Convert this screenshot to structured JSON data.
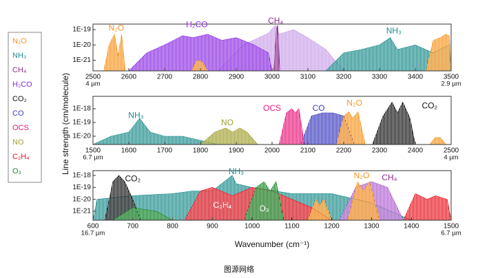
{
  "figure": {
    "y_label": "Line strength (cm/molecule)",
    "x_label": "Wavenumber (cm⁻¹)",
    "caption": "图源网络",
    "legend": [
      {
        "text": "N₂O",
        "color": "#f7941d"
      },
      {
        "text": "NH₃",
        "color": "#1a8a8a"
      },
      {
        "text": "CH₄",
        "color": "#8b2b8b"
      },
      {
        "text": "H₂CO",
        "color": "#8a2be2"
      },
      {
        "text": "CO₂",
        "color": "#111111"
      },
      {
        "text": "CO",
        "color": "#3b3bbf"
      },
      {
        "text": "OCS",
        "color": "#e8177a"
      },
      {
        "text": "NO",
        "color": "#a0a030"
      },
      {
        "text": "C₂H₄",
        "color": "#e8141e"
      },
      {
        "text": "O₃",
        "color": "#1a8a2a"
      }
    ]
  },
  "chart_data": [
    {
      "type": "area",
      "log_y": true,
      "xlim": [
        2500,
        3500
      ],
      "ylim": [
        2e-22,
        2.3e-19
      ],
      "xticks": [
        2500,
        2600,
        2700,
        2800,
        2900,
        3000,
        3100,
        3200,
        3300,
        3400,
        3500
      ],
      "yticks": [
        {
          "value": 1e-19,
          "label": "1E-19"
        },
        {
          "value": 1e-20,
          "label": "1E-20"
        },
        {
          "value": 1e-21,
          "label": "1E-21"
        }
      ],
      "wavelength_labels": [
        {
          "x": 2500,
          "text": "4 µm"
        },
        {
          "x": 3500,
          "text": "2.9 µm"
        }
      ],
      "series": [
        {
          "color": "#c9a0e8",
          "x": [
            2850,
            2920,
            2990,
            3010,
            3020,
            3060,
            3100,
            3150,
            3200
          ],
          "values": [
            2e-22,
            1e-20,
            6e-20,
            2e-19,
            5e-20,
            1e-19,
            3e-20,
            5e-21,
            2e-22
          ]
        },
        {
          "color": "#8a2be2",
          "x": [
            2600,
            2650,
            2700,
            2750,
            2780,
            2820,
            2860,
            2900,
            2950,
            2990,
            3000
          ],
          "values": [
            2e-22,
            3e-21,
            1e-20,
            4e-20,
            3e-20,
            5e-20,
            2e-20,
            3e-20,
            1e-20,
            3e-21,
            2e-22
          ]
        },
        {
          "color": "#8b2b8b",
          "x": [
            3005,
            3012,
            3016,
            3022
          ],
          "values": [
            2e-22,
            1e-19,
            2e-19,
            2e-22
          ]
        },
        {
          "color": "#f7941d",
          "x": [
            2530,
            2545,
            2560,
            2570,
            2580,
            2590
          ],
          "values": [
            2e-22,
            1e-20,
            5e-20,
            2e-21,
            5e-20,
            2e-22
          ]
        },
        {
          "color": "#f7941d",
          "x": [
            2775,
            2790,
            2805,
            2820
          ],
          "values": [
            2e-22,
            1e-21,
            8e-22,
            2e-22
          ]
        },
        {
          "color": "#1a8a8a",
          "x": [
            3150,
            3200,
            3250,
            3300,
            3330,
            3350,
            3400,
            3450,
            3495,
            3500
          ],
          "values": [
            2e-22,
            3e-21,
            5e-21,
            1e-20,
            3e-20,
            5e-21,
            1e-20,
            3e-21,
            1e-20,
            2e-22
          ]
        },
        {
          "color": "#f7941d",
          "x": [
            3430,
            3450,
            3470,
            3485,
            3495,
            3500
          ],
          "values": [
            2e-22,
            2e-20,
            3e-20,
            5e-20,
            4e-20,
            2e-22
          ]
        }
      ],
      "annotations": [
        {
          "text": "N₂O",
          "x": 2565,
          "y": 1.2e-19,
          "color": "#f7941d"
        },
        {
          "text": "H₂CO",
          "x": 2790,
          "y": 2e-19,
          "color": "#8a2be2"
        },
        {
          "text": "CH₄",
          "x": 3010,
          "y": 3.5e-19,
          "color": "#8b2b8b"
        },
        {
          "text": "NH₃",
          "x": 3340,
          "y": 8e-20,
          "color": "#1a8a8a"
        }
      ]
    },
    {
      "type": "area",
      "log_y": true,
      "xlim": [
        1500,
        2500
      ],
      "ylim": [
        2.5e-21,
        8e-18
      ],
      "xticks": [
        1500,
        1600,
        1700,
        1800,
        1900,
        2000,
        2100,
        2200,
        2300,
        2400,
        2500
      ],
      "yticks": [
        {
          "value": 1e-18,
          "label": "1E-18"
        },
        {
          "value": 1e-19,
          "label": "1E-19"
        },
        {
          "value": 1e-20,
          "label": "1E-20"
        }
      ],
      "wavelength_labels": [
        {
          "x": 1500,
          "text": "6.7 µm"
        },
        {
          "x": 2500,
          "text": "4 µm"
        }
      ],
      "series": [
        {
          "color": "#1a8a8a",
          "x": [
            1500,
            1550,
            1600,
            1630,
            1660,
            1700,
            1750,
            1800,
            1850
          ],
          "values": [
            2.5e-21,
            1e-20,
            2e-20,
            2e-19,
            2e-20,
            1e-20,
            1e-20,
            5e-21,
            2.5e-21
          ]
        },
        {
          "color": "#a0a030",
          "x": [
            1800,
            1840,
            1870,
            1890,
            1910,
            1930,
            1960
          ],
          "values": [
            2.5e-21,
            2e-20,
            4e-20,
            2e-20,
            4e-20,
            2e-20,
            2.5e-21
          ]
        },
        {
          "color": "#3b3bbf",
          "x": [
            2080,
            2110,
            2140,
            2170,
            2200,
            2230
          ],
          "values": [
            2.5e-21,
            3e-19,
            5e-19,
            5e-19,
            3e-19,
            2.5e-21
          ]
        },
        {
          "color": "#e8177a",
          "x": [
            2020,
            2040,
            2055,
            2065,
            2075,
            2090
          ],
          "values": [
            2.5e-21,
            5e-19,
            1e-18,
            5e-19,
            1e-18,
            2.5e-21
          ]
        },
        {
          "color": "#f7941d",
          "x": [
            2180,
            2200,
            2215,
            2225,
            2240,
            2260
          ],
          "values": [
            2.5e-21,
            3e-19,
            6e-19,
            2e-19,
            6e-19,
            2.5e-21
          ]
        },
        {
          "color": "#111111",
          "x": [
            2280,
            2310,
            2335,
            2350,
            2365,
            2385,
            2400
          ],
          "values": [
            2.5e-21,
            3e-19,
            3e-18,
            5e-19,
            3e-18,
            2e-19,
            2.5e-21
          ]
        },
        {
          "color": "#f7941d",
          "x": [
            2440,
            2455,
            2470,
            2485
          ],
          "values": [
            2.5e-21,
            8e-21,
            8e-21,
            2.5e-21
          ]
        }
      ],
      "annotations": [
        {
          "text": "NH₃",
          "x": 1620,
          "y": 3e-19,
          "color": "#1a8a8a"
        },
        {
          "text": "NO",
          "x": 1875,
          "y": 9e-20,
          "color": "#a0a030"
        },
        {
          "text": "OCS",
          "x": 2000,
          "y": 1e-18,
          "color": "#e8177a"
        },
        {
          "text": "CO",
          "x": 2130,
          "y": 1e-18,
          "color": "#3b3bbf"
        },
        {
          "text": "N₂O",
          "x": 2230,
          "y": 2.5e-18,
          "color": "#f7941d"
        },
        {
          "text": "CO₂",
          "x": 2440,
          "y": 1.5e-18,
          "color": "#111111"
        }
      ]
    },
    {
      "type": "area",
      "log_y": true,
      "xlim": [
        600,
        1500
      ],
      "ylim": [
        1.8e-22,
        2.5e-18
      ],
      "xticks": [
        600,
        700,
        800,
        900,
        1000,
        1100,
        1200,
        1300,
        1400,
        1500
      ],
      "yticks": [
        {
          "value": 1e-18,
          "label": "1E-18"
        },
        {
          "value": 1e-19,
          "label": "1E-19"
        },
        {
          "value": 1e-20,
          "label": "1E-20"
        },
        {
          "value": 1e-21,
          "label": "1E-21"
        }
      ],
      "wavelength_labels": [
        {
          "x": 600,
          "text": "16.7 µm"
        },
        {
          "x": 1500,
          "text": "6.7 µm"
        }
      ],
      "series": [
        {
          "color": "#1a8a8a",
          "x": [
            600,
            610,
            700,
            800,
            850,
            900,
            950,
            960,
            1000,
            1100,
            1200,
            1300,
            1400
          ],
          "values": [
            1.8e-22,
            1e-20,
            2e-20,
            3e-20,
            5e-20,
            5e-20,
            1e-18,
            2e-19,
            1e-19,
            3e-20,
            3e-20,
            5e-21,
            1.8e-22
          ]
        },
        {
          "color": "#111111",
          "x": [
            630,
            650,
            665,
            680,
            700,
            720
          ],
          "values": [
            1.8e-22,
            3e-19,
            1e-18,
            3e-19,
            1e-20,
            1.8e-22
          ]
        },
        {
          "color": "#1a8a2a",
          "x": [
            650,
            700,
            760,
            800
          ],
          "values": [
            1.8e-22,
            2e-21,
            1e-21,
            1.8e-22
          ]
        },
        {
          "color": "#e8141e",
          "x": [
            830,
            870,
            900,
            950,
            1000,
            1050,
            1100,
            1150,
            1200
          ],
          "values": [
            1.8e-22,
            5e-20,
            1e-19,
            2e-20,
            1e-19,
            5e-20,
            1e-20,
            2e-21,
            1.8e-22
          ]
        },
        {
          "color": "#1a8a2a",
          "x": [
            980,
            1010,
            1030,
            1045,
            1060,
            1080
          ],
          "values": [
            1.8e-22,
            1e-19,
            3e-19,
            5e-20,
            3e-19,
            1.8e-22
          ]
        },
        {
          "color": "#f7941d",
          "x": [
            1140,
            1160,
            1170,
            1180,
            1200
          ],
          "values": [
            1.8e-22,
            1e-20,
            3e-21,
            1e-20,
            1.8e-22
          ]
        },
        {
          "color": "#b060d0",
          "x": [
            1220,
            1260,
            1300,
            1340,
            1380
          ],
          "values": [
            1.8e-22,
            1e-19,
            3e-19,
            1e-19,
            1.8e-22
          ]
        },
        {
          "color": "#f7941d",
          "x": [
            1240,
            1265,
            1280,
            1295,
            1320
          ],
          "values": [
            1.8e-22,
            3e-19,
            5e-20,
            3e-19,
            1.8e-22
          ]
        },
        {
          "color": "#e8141e",
          "x": [
            1380,
            1410,
            1440,
            1460,
            1490,
            1500
          ],
          "values": [
            1.8e-22,
            3e-20,
            1e-20,
            2e-20,
            1e-20,
            1.8e-22
          ]
        }
      ],
      "annotations": [
        {
          "text": "CO₂",
          "x": 700,
          "y": 5e-19,
          "color": "#111111"
        },
        {
          "text": "NH₃",
          "x": 960,
          "y": 2e-18,
          "color": "#1a8a8a"
        },
        {
          "text": "C₂H₄",
          "x": 925,
          "y": 3e-21,
          "color": "#ffffff"
        },
        {
          "text": "O₃",
          "x": 1030,
          "y": 1.5e-21,
          "color": "#ffffff"
        },
        {
          "text": "N₂O",
          "x": 1275,
          "y": 9e-19,
          "color": "#f7941d"
        },
        {
          "text": "CH₄",
          "x": 1345,
          "y": 6e-19,
          "color": "#8b2b8b"
        }
      ]
    }
  ]
}
